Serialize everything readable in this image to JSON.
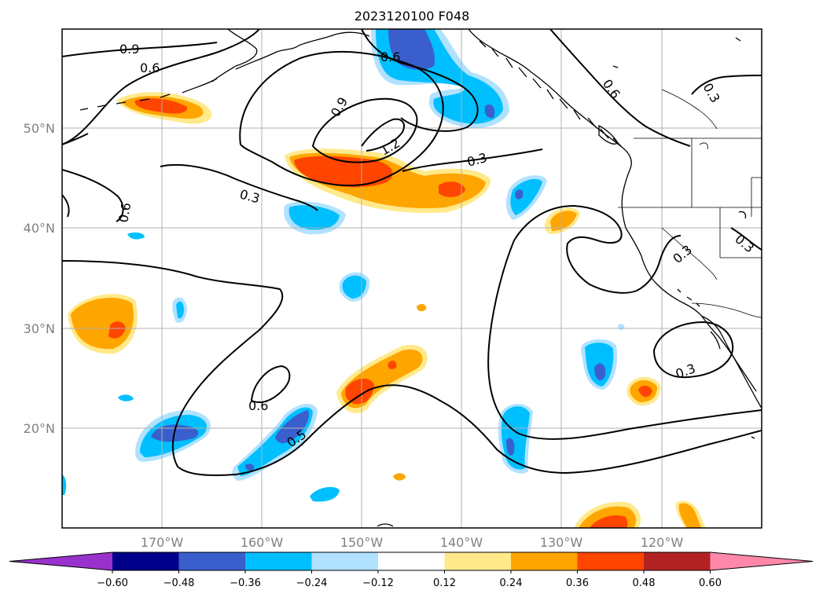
{
  "title": "2023120100 F048",
  "map": {
    "lat_labels": [
      "50°N",
      "40°N",
      "30°N",
      "20°N"
    ],
    "lon_labels": [
      "170°W",
      "160°W",
      "150°W",
      "140°W",
      "130°W",
      "120°W"
    ],
    "contour_labels": [
      "0.9",
      "0.6",
      "0.6",
      "0.9",
      "1.2",
      "0.3",
      "0.3",
      "0.6",
      "0.6",
      "0.3",
      "0.3",
      "0.3",
      "0.6",
      "0.3",
      "0.5"
    ],
    "colors": {
      "land_outline": "#000000",
      "grid": "#b0b0b0",
      "contour": "#000000"
    }
  },
  "colorbar": {
    "ticks": [
      "−0.60",
      "−0.48",
      "−0.36",
      "−0.24",
      "−0.12",
      "0.12",
      "0.24",
      "0.36",
      "0.48",
      "0.60"
    ],
    "colors": [
      "#9932cc",
      "#00008b",
      "#3a5fcd",
      "#00bfff",
      "#b0e2ff",
      "#ffffff",
      "#ffe98a",
      "#ffa500",
      "#ff4500",
      "#b22222",
      "#ff88aa"
    ]
  }
}
